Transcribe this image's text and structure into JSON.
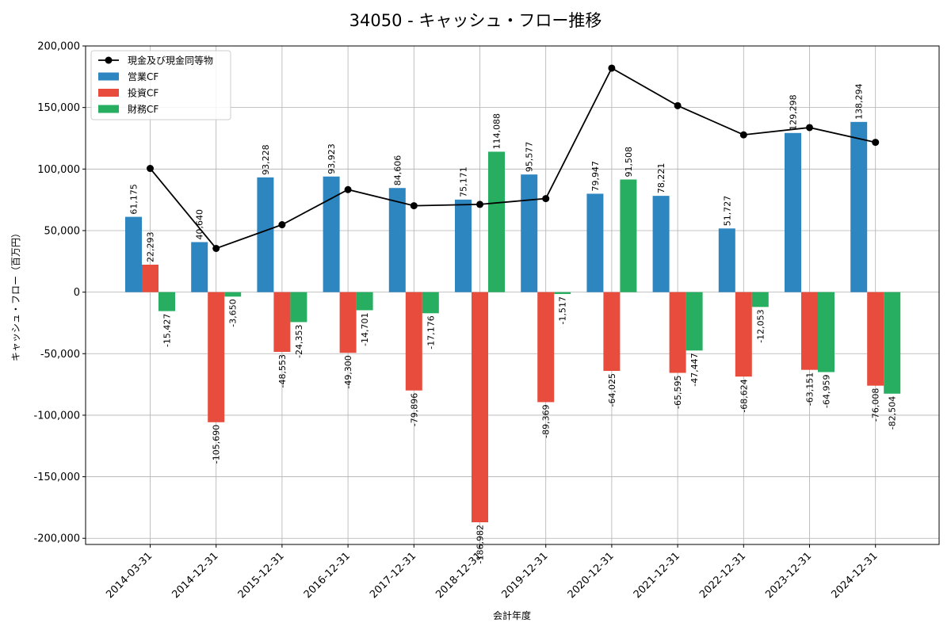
{
  "chart_data": {
    "type": "bar",
    "title": "34050 - キャッシュ・フロー推移",
    "xlabel": "会計年度",
    "ylabel": "キャッシュ・フロー（百万円）",
    "ylim": [
      -205000,
      200000
    ],
    "yticks": [
      -200000,
      -150000,
      -100000,
      -50000,
      0,
      50000,
      100000,
      150000,
      200000
    ],
    "ytick_labels": [
      "-200,000",
      "-150,000",
      "-100,000",
      "-50,000",
      "0",
      "50,000",
      "100,000",
      "150,000",
      "200,000"
    ],
    "grid": true,
    "legend_position": "top-left",
    "categories": [
      "2014-03-31",
      "2014-12-31",
      "2015-12-31",
      "2016-12-31",
      "2017-12-31",
      "2018-12-31",
      "2019-12-31",
      "2020-12-31",
      "2021-12-31",
      "2022-12-31",
      "2023-12-31",
      "2024-12-31"
    ],
    "series": [
      {
        "name": "営業CF",
        "kind": "bar",
        "color": "#2e86c1",
        "values": [
          61175,
          40640,
          93228,
          93923,
          84606,
          75171,
          95577,
          79947,
          78221,
          51727,
          129298,
          138294
        ],
        "labels": [
          "61,175",
          "40,640",
          "93,228",
          "93,923",
          "84,606",
          "75,171",
          "95,577",
          "79,947",
          "78,221",
          "51,727",
          "129,298",
          "138,294"
        ]
      },
      {
        "name": "投資CF",
        "kind": "bar",
        "color": "#e74c3c",
        "values": [
          22293,
          -105690,
          -48553,
          -49300,
          -79896,
          -186982,
          -89369,
          -64025,
          -65595,
          -68624,
          -63151,
          -76008
        ],
        "labels": [
          "22,293",
          "-105,690",
          "-48,553",
          "-49,300",
          "-79,896",
          "-186,982",
          "-89,369",
          "-64,025",
          "-65,595",
          "-68,624",
          "-63,151",
          "-76,008"
        ]
      },
      {
        "name": "財務CF",
        "kind": "bar",
        "color": "#27ae60",
        "values": [
          -15427,
          -3650,
          -24353,
          -14701,
          -17176,
          114088,
          -1517,
          91508,
          -47447,
          -12053,
          -64959,
          -82504
        ],
        "labels": [
          "-15,427",
          "-3,650",
          "-24,353",
          "-14,701",
          "-17,176",
          "114,088",
          "-1,517",
          "91,508",
          "-47,447",
          "-12,053",
          "-64,959",
          "-82,504"
        ]
      },
      {
        "name": "現金及び現金同等物",
        "kind": "line",
        "color": "#000000",
        "values": [
          100500,
          35500,
          54800,
          83300,
          70200,
          71300,
          76000,
          182000,
          151500,
          127800,
          133700,
          121700
        ]
      }
    ]
  }
}
